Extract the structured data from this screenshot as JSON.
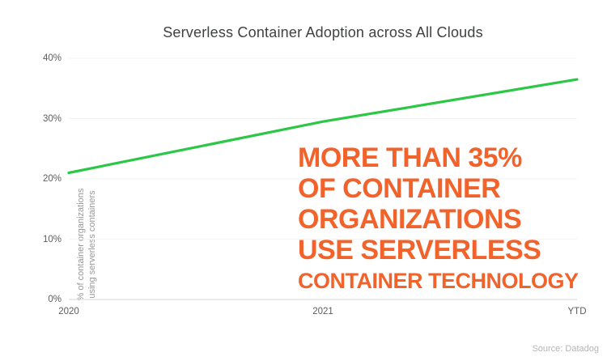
{
  "chart_data": {
    "type": "line",
    "title": "Serverless Container Adoption across All Clouds",
    "categories": [
      "2020",
      "2021",
      "YTD"
    ],
    "values": [
      21,
      29.5,
      36.5
    ],
    "ylim": [
      0,
      40
    ],
    "yticks": [
      0,
      10,
      20,
      30,
      40
    ],
    "ytick_labels": [
      "0%",
      "10%",
      "20%",
      "30%",
      "40%"
    ],
    "ylabel": "% of container organizations using serverless containers",
    "ylabel_lines": {
      "line1": "% of container organizations",
      "line2": "using serverless containers"
    },
    "xlabel": "",
    "legend": "none",
    "grid": "faint-horizontal-plus-bottom-axis",
    "line_color": "#2cc746",
    "annotation": {
      "color": "#f2622b",
      "lines": [
        "MORE THAN 35%",
        "OF CONTAINER",
        "ORGANIZATIONS",
        "USE SERVERLESS",
        "CONTAINER TECHNOLOGY"
      ]
    }
  },
  "source": "Source: Datadog"
}
